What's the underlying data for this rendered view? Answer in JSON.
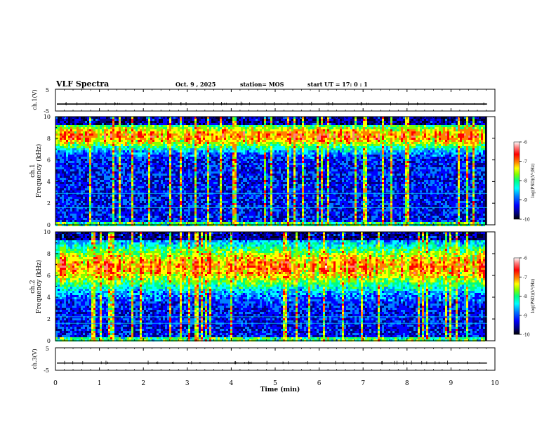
{
  "header": {
    "title": "VLF Spectra",
    "date": "Oct. 9 , 2025",
    "station": "station= MOS",
    "start": "start  UT =   17: 0  : 1"
  },
  "colors": {
    "colormap": [
      "#000000",
      "#000080",
      "#0000ff",
      "#0080ff",
      "#00ffff",
      "#00ff80",
      "#80ff00",
      "#ffff00",
      "#ff8000",
      "#ff0000",
      "#ff8080",
      "#ffffff"
    ]
  },
  "chart_data": [
    {
      "type": "line",
      "id": "ch1-voltage",
      "ylabel": "ch.1(V)",
      "ylim": [
        -5,
        5
      ],
      "yticks": [
        "5",
        "-5"
      ],
      "baseline": -1.8
    },
    {
      "type": "heatmap",
      "id": "ch1-spectrogram",
      "ylabel": [
        "ch.1",
        "Frequency (kHz)"
      ],
      "ylim": [
        0,
        10
      ],
      "yticks": [
        "10",
        "8",
        "6",
        "4",
        "2",
        "0"
      ],
      "band_center_khz": 8.2,
      "band_width_khz": 1.2,
      "hum_lines_khz": [
        1.6,
        2.9
      ],
      "colorbar": {
        "label": "log(PSD)(V²/Hz)",
        "ticks": [
          "-6",
          "-7",
          "-8",
          "-9",
          "-10"
        ],
        "range": [
          -10,
          -6
        ]
      }
    },
    {
      "type": "heatmap",
      "id": "ch2-spectrogram",
      "ylabel": [
        "ch.2",
        "Frequency (kHz)"
      ],
      "ylim": [
        0,
        10
      ],
      "yticks": [
        "10",
        "8",
        "6",
        "4",
        "2",
        "0"
      ],
      "band_center_khz": 6.8,
      "band_width_khz": 2.0,
      "hum_lines_khz": [
        1.6,
        2.2
      ],
      "colorbar": {
        "label": "log(PSD)(V²/Hz)",
        "ticks": [
          "-6",
          "-7",
          "-8",
          "-9",
          "-10"
        ],
        "range": [
          -10,
          -6
        ]
      }
    },
    {
      "type": "line",
      "id": "ch3-voltage",
      "ylabel": "ch.3(V)",
      "ylim": [
        -5,
        5
      ],
      "yticks": [
        "5",
        "-5"
      ],
      "baseline": -1.8
    }
  ],
  "xaxis": {
    "label": "Time  (min)",
    "xlim": [
      0,
      10
    ],
    "ticks": [
      "0",
      "1",
      "2",
      "3",
      "4",
      "5",
      "6",
      "7",
      "8",
      "9",
      "10"
    ],
    "data_end_min": 9.82
  }
}
